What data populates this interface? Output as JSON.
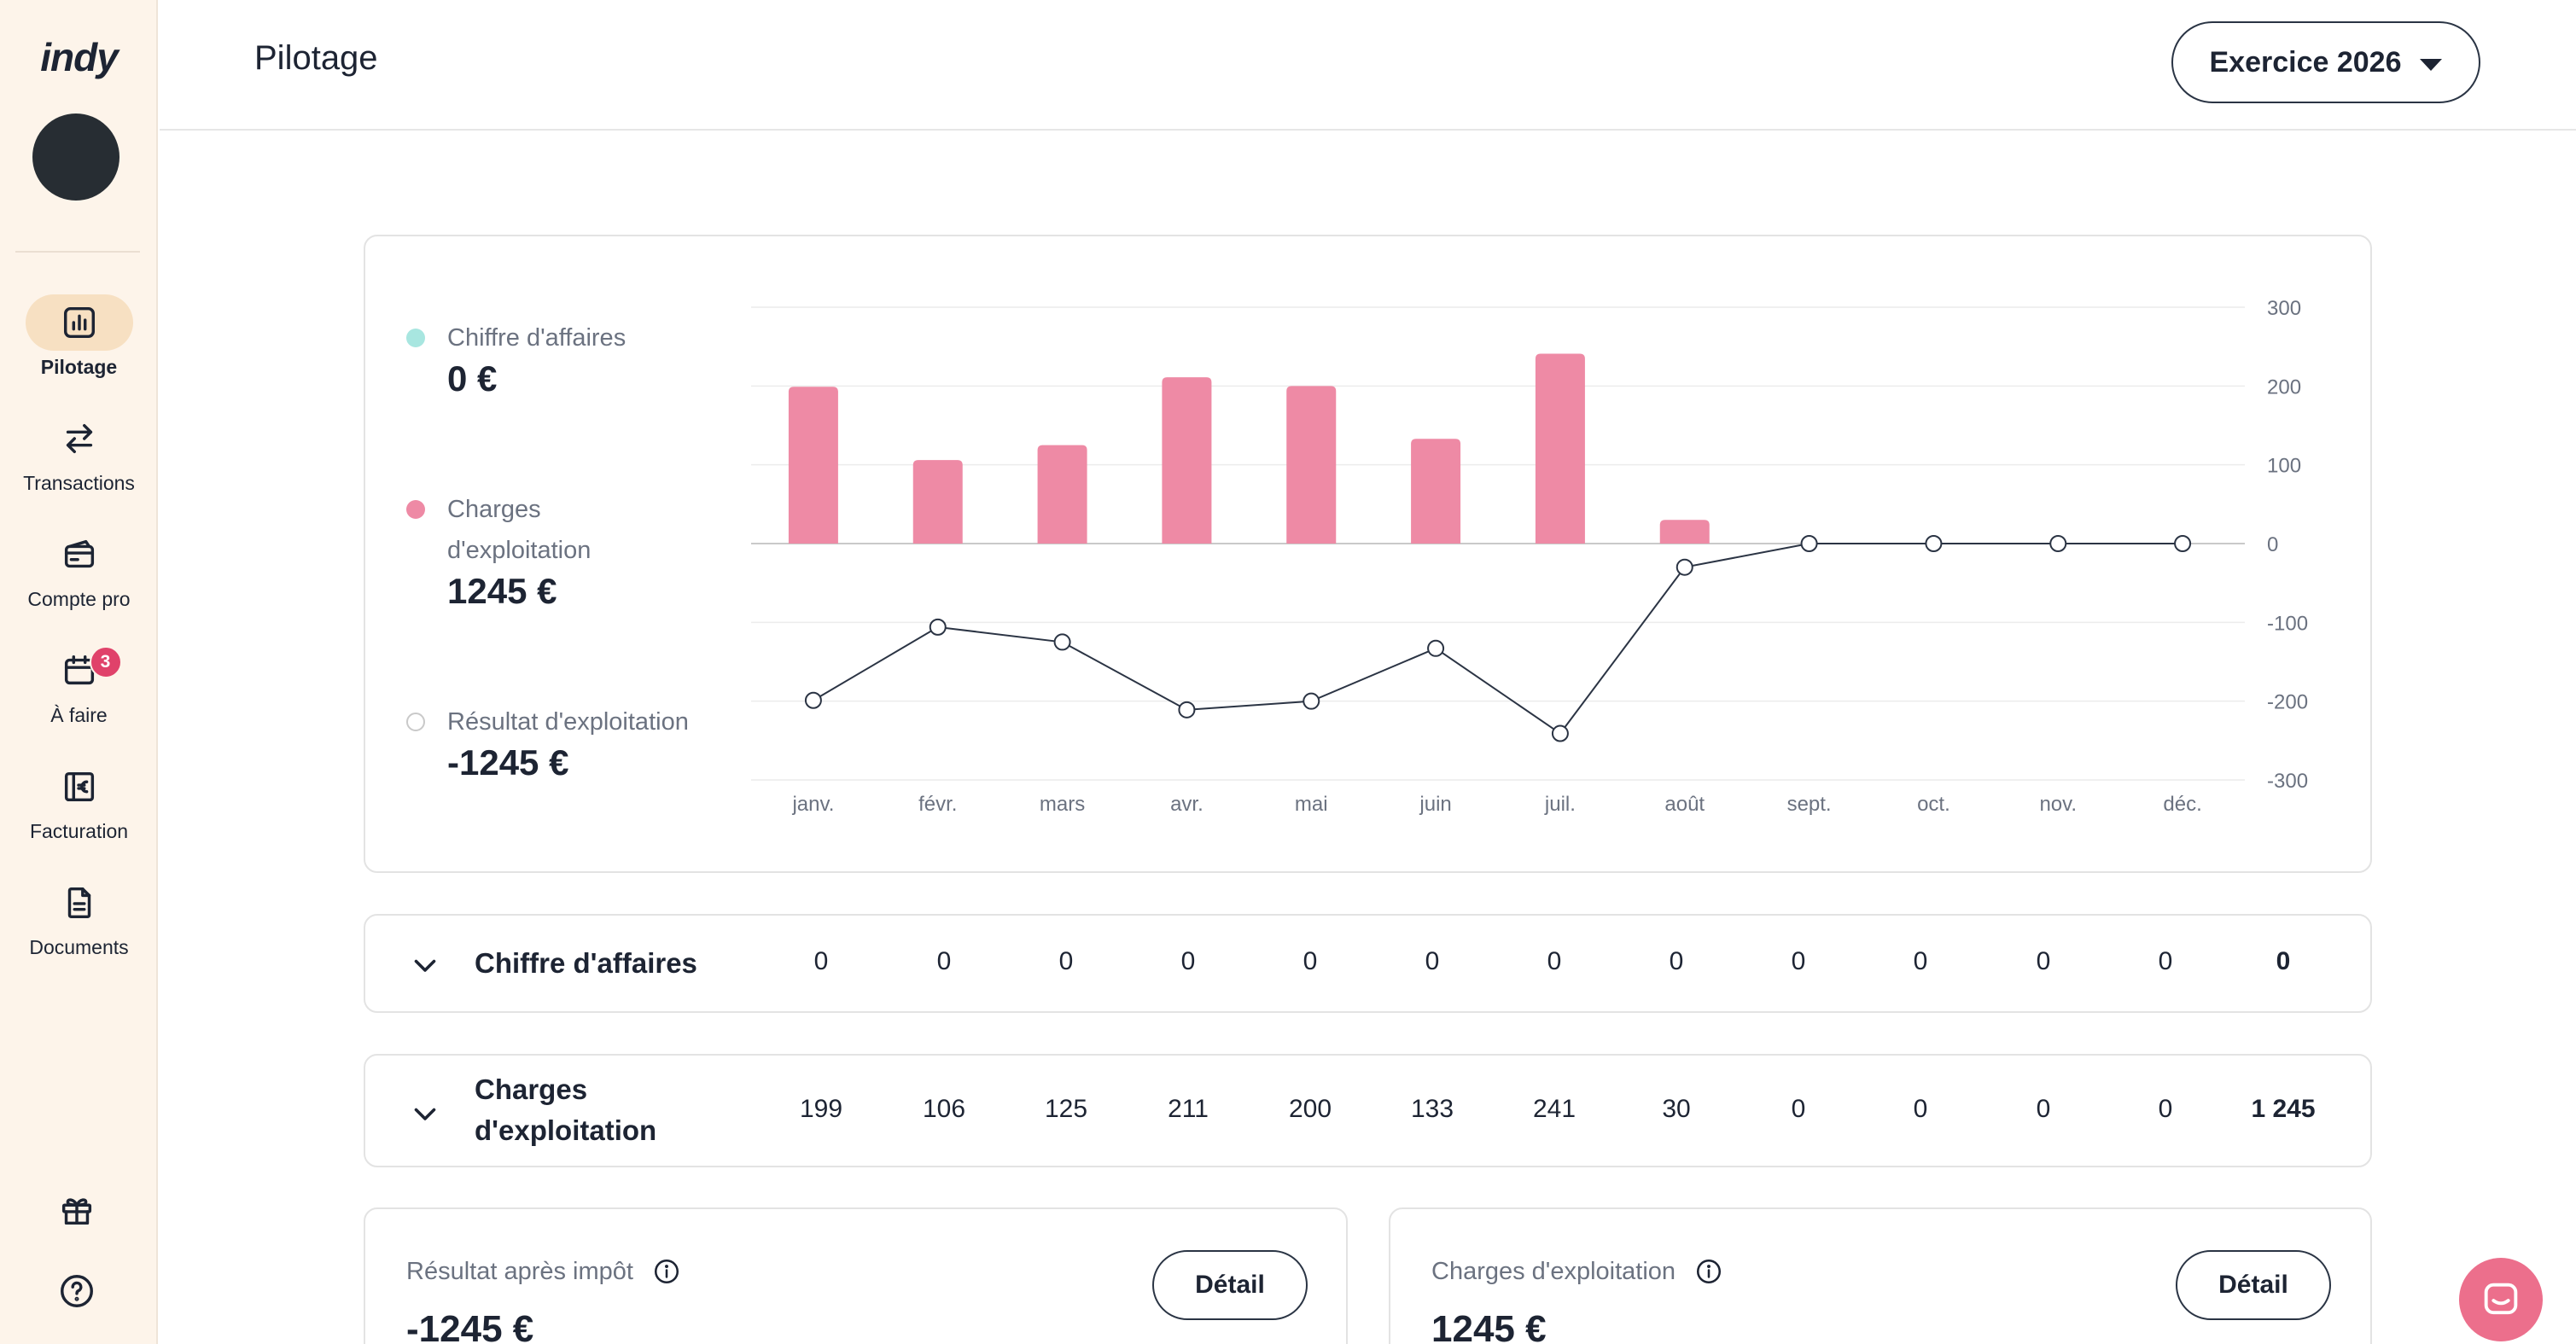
{
  "app": {
    "logo": "indy"
  },
  "sidebar": {
    "items": [
      {
        "label": "Pilotage",
        "icon": "chart-icon",
        "active": true
      },
      {
        "label": "Transactions",
        "icon": "transfer-arrows-icon"
      },
      {
        "label": "Compte pro",
        "icon": "card-icon"
      },
      {
        "label": "À faire",
        "icon": "calendar-icon",
        "badge": "3"
      },
      {
        "label": "Facturation",
        "icon": "invoice-euro-icon"
      },
      {
        "label": "Documents",
        "icon": "document-icon"
      }
    ],
    "bottom_icons": [
      "gift-icon",
      "help-icon"
    ]
  },
  "header": {
    "title": "Pilotage",
    "exercise_label": "Exercice 2026"
  },
  "legend": [
    {
      "label": "Chiffre d'affaires",
      "value": "0 €",
      "color": "#a8e6e0"
    },
    {
      "label_line1": "Charges",
      "label_line2": "d'exploitation",
      "value": "1245 €",
      "color": "#ee8aa5"
    },
    {
      "label": "Résultat d'exploitation",
      "value": "-1245 €",
      "color": "#ffffff"
    }
  ],
  "chart_data": {
    "type": "bar",
    "categories": [
      "janv.",
      "févr.",
      "mars",
      "avr.",
      "mai",
      "juin",
      "juil.",
      "août",
      "sept.",
      "oct.",
      "nov.",
      "déc."
    ],
    "series": [
      {
        "name": "Chiffre d'affaires",
        "type": "bar",
        "values": [
          0,
          0,
          0,
          0,
          0,
          0,
          0,
          0,
          0,
          0,
          0,
          0
        ]
      },
      {
        "name": "Charges d'exploitation",
        "type": "bar",
        "values": [
          199,
          106,
          125,
          211,
          200,
          133,
          241,
          30,
          0,
          0,
          0,
          0
        ]
      },
      {
        "name": "Résultat d'exploitation",
        "type": "line",
        "values": [
          -199,
          -106,
          -125,
          -211,
          -200,
          -133,
          -241,
          -30,
          0,
          0,
          0,
          0
        ]
      }
    ],
    "yticks": [
      "300",
      "200",
      "100",
      "0",
      "-100",
      "-200",
      "-300"
    ],
    "ylim": [
      -300,
      300
    ],
    "grid": true,
    "colors": {
      "bar": "#ee8aa5",
      "line": "#2b3444",
      "grid": "#ececec",
      "axis": "#c9c9c9"
    }
  },
  "rows": [
    {
      "title": "Chiffre d'affaires",
      "values": [
        "0",
        "0",
        "0",
        "0",
        "0",
        "0",
        "0",
        "0",
        "0",
        "0",
        "0",
        "0"
      ],
      "total": "0"
    },
    {
      "title_line1": "Charges",
      "title_line2": "d'exploitation",
      "values": [
        "199",
        "106",
        "125",
        "211",
        "200",
        "133",
        "241",
        "30",
        "0",
        "0",
        "0",
        "0"
      ],
      "total": "1 245"
    }
  ],
  "kpis": [
    {
      "title": "Résultat après impôt",
      "value": "-1245 €",
      "button": "Détail"
    },
    {
      "title": "Charges d'exploitation",
      "value": "1245 €",
      "button": "Détail"
    }
  ]
}
